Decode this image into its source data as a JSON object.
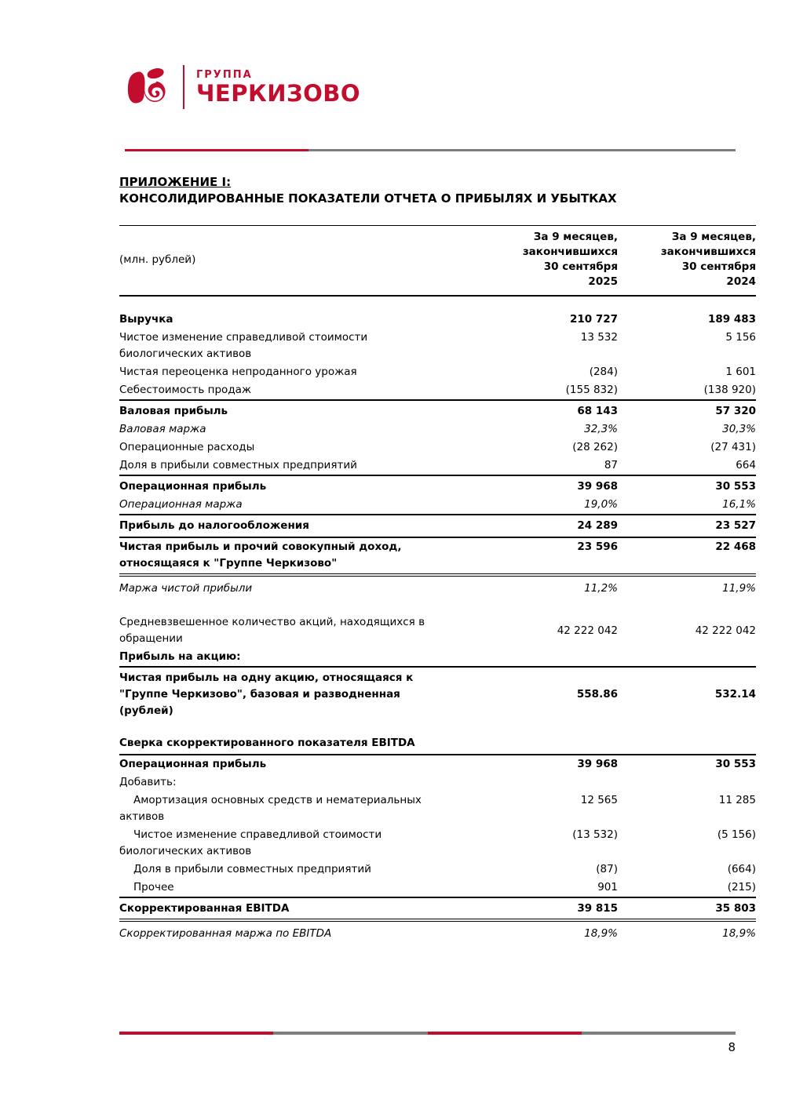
{
  "page": {
    "number": "8"
  },
  "colors": {
    "brand_red": "#c30d2e",
    "rule_gray": "#7e7e7e",
    "text_black": "#000000"
  },
  "logo": {
    "group_word": "ГРУППА",
    "brand_word": "ЧЕРКИЗОВО"
  },
  "title": {
    "line1": "ПРИЛОЖЕНИЕ I:",
    "line2": "КОНСОЛИДИРОВАННЫЕ ПОКАЗАТЕЛИ ОТЧЕТА О ПРИБЫЛЯХ И УБЫТКАХ"
  },
  "table": {
    "unit_label": "(млн. рублей)",
    "col_2025": "За 9 месяцев,\nзакончившихся\n30 сентября\n2025",
    "col_2024": "За 9 месяцев,\nзакончившихся\n30 сентября\n2024",
    "rows": [
      {
        "label": "Выручка",
        "v2025": "210 727",
        "v2024": "189 483",
        "bold": true,
        "first": true
      },
      {
        "label": "Чистое изменение справедливой стоимости\nбиологических активов",
        "v2025": "13 532",
        "v2024": "5 156"
      },
      {
        "label": "Чистая переоценка непроданного урожая",
        "v2025": "(284)",
        "v2024": "1 601"
      },
      {
        "label": "Себестоимость продаж",
        "v2025": "(155 832)",
        "v2024": "(138 920)"
      },
      {
        "label": "Валовая прибыль",
        "v2025": "68 143",
        "v2024": "57 320",
        "bold": true,
        "border_top": "single"
      },
      {
        "label": "Валовая маржа",
        "v2025": "32,3%",
        "v2024": "30,3%",
        "italic": true
      },
      {
        "label": "Операционные расходы",
        "v2025": "(28 262)",
        "v2024": "(27 431)"
      },
      {
        "label": "Доля в прибыли совместных предприятий",
        "v2025": "87",
        "v2024": "664"
      },
      {
        "label": "Операционная прибыль",
        "v2025": "39 968",
        "v2024": "30 553",
        "bold": true,
        "border_top": "single"
      },
      {
        "label": "Операционная маржа",
        "v2025": "19,0%",
        "v2024": "16,1%",
        "italic": true
      },
      {
        "label": "Прибыль до налогообложения",
        "v2025": "24 289",
        "v2024": "23 527",
        "bold": true,
        "border_top": "single",
        "border_bottom": "single"
      },
      {
        "label": "Чистая прибыль и прочий совокупный доход,\nотносящаяся к \"Группе Черкизово\"",
        "v2025": "23 596",
        "v2024": "22 468",
        "bold": true,
        "border_bottom": "double"
      },
      {
        "label": "Маржа чистой прибыли",
        "v2025": "11,2%",
        "v2024": "11,9%",
        "italic": true
      },
      {
        "label": "Средневзвешенное количество акций, находящихся в\nобращении",
        "v2025": "42 222 042",
        "v2024": "42 222 042",
        "valign": "middle",
        "gap_before": 20
      },
      {
        "label": "Прибыль на акцию:",
        "v2025": "",
        "v2024": "",
        "bold": true
      },
      {
        "label": "Чистая прибыль на одну акцию, относящаяся к\n\"Группе Черкизово\", базовая и разводненная\n(рублей)",
        "v2025": "558.86",
        "v2024": "532.14",
        "bold": true,
        "valign": "middle",
        "border_top": "single"
      },
      {
        "label": "Сверка скорректированного показателя EBITDA",
        "v2025": "",
        "v2024": "",
        "bold": true,
        "border_bottom": "single",
        "gap_before": 18
      },
      {
        "label": "Операционная прибыль",
        "v2025": "39 968",
        "v2024": "30 553",
        "bold": true
      },
      {
        "label": "Добавить:",
        "v2025": "",
        "v2024": ""
      },
      {
        "label": "Амортизация основных средств и нематериальных\nактивов",
        "v2025": "12 565",
        "v2024": "11 285",
        "indent": true
      },
      {
        "label": "Чистое изменение справедливой стоимости\nбиологических активов",
        "v2025": "(13 532)",
        "v2024": "(5 156)",
        "indent": true
      },
      {
        "label": "Доля в прибыли совместных предприятий",
        "v2025": "(87)",
        "v2024": "(664)",
        "indent": true
      },
      {
        "label": "Прочее",
        "v2025": "901",
        "v2024": "(215)",
        "indent": true
      },
      {
        "label": "Скорректированная EBITDA",
        "v2025": "39 815",
        "v2024": "35 803",
        "bold": true,
        "border_top": "single",
        "border_bottom": "double"
      },
      {
        "label": "Скорректированная маржа по EBITDA",
        "v2025": "18,9%",
        "v2024": "18,9%",
        "italic": true
      }
    ]
  }
}
